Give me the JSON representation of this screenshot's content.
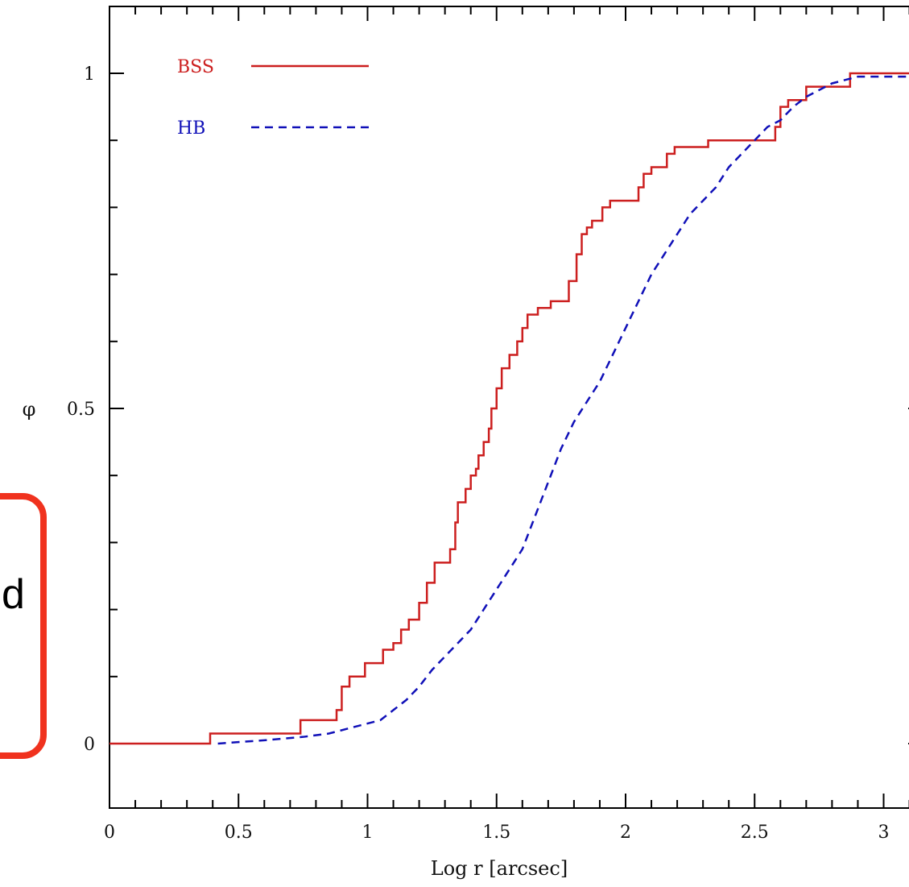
{
  "chart_data": {
    "type": "line",
    "xlabel": "Log r [arcsec]",
    "ylabel": "φ",
    "xlim": [
      0,
      3.1
    ],
    "ylim": [
      -0.1,
      1.1
    ],
    "x_ticks": [
      {
        "value": 0,
        "label": "0"
      },
      {
        "value": 0.5,
        "label": "0.5"
      },
      {
        "value": 1,
        "label": "1"
      },
      {
        "value": 1.5,
        "label": "1.5"
      },
      {
        "value": 2,
        "label": "2"
      },
      {
        "value": 2.5,
        "label": "2.5"
      },
      {
        "value": 3,
        "label": "3"
      }
    ],
    "y_ticks": [
      {
        "value": 0,
        "label": "0"
      },
      {
        "value": 0.5,
        "label": "0.5"
      },
      {
        "value": 1,
        "label": "1"
      }
    ],
    "grid": false,
    "legend_position": "top-left",
    "series": [
      {
        "name": "BSS",
        "color": "#cc1f1f",
        "style": "solid",
        "step": true,
        "x": [
          0,
          0.39,
          0.74,
          0.88,
          0.9,
          0.93,
          0.99,
          1.06,
          1.1,
          1.13,
          1.16,
          1.2,
          1.23,
          1.26,
          1.32,
          1.34,
          1.35,
          1.38,
          1.4,
          1.42,
          1.43,
          1.45,
          1.47,
          1.48,
          1.5,
          1.52,
          1.55,
          1.58,
          1.6,
          1.62,
          1.66,
          1.71,
          1.78,
          1.81,
          1.83,
          1.85,
          1.87,
          1.91,
          1.94,
          2.05,
          2.07,
          2.1,
          2.16,
          2.19,
          2.32,
          2.58,
          2.6,
          2.63,
          2.7,
          2.87,
          3.1
        ],
        "y": [
          0,
          0.015,
          0.035,
          0.05,
          0.085,
          0.1,
          0.12,
          0.14,
          0.15,
          0.17,
          0.185,
          0.21,
          0.24,
          0.27,
          0.29,
          0.33,
          0.36,
          0.38,
          0.4,
          0.41,
          0.43,
          0.45,
          0.47,
          0.5,
          0.53,
          0.56,
          0.58,
          0.6,
          0.62,
          0.64,
          0.65,
          0.66,
          0.69,
          0.73,
          0.76,
          0.77,
          0.78,
          0.8,
          0.81,
          0.83,
          0.85,
          0.86,
          0.88,
          0.89,
          0.9,
          0.92,
          0.95,
          0.96,
          0.98,
          1.0,
          1.0
        ]
      },
      {
        "name": "HB",
        "color": "#1010b8",
        "style": "dashed",
        "step": false,
        "x": [
          0.42,
          0.6,
          0.75,
          0.85,
          0.95,
          1.05,
          1.1,
          1.15,
          1.2,
          1.25,
          1.3,
          1.35,
          1.4,
          1.45,
          1.5,
          1.55,
          1.6,
          1.65,
          1.7,
          1.75,
          1.8,
          1.85,
          1.9,
          1.95,
          2.0,
          2.05,
          2.1,
          2.15,
          2.2,
          2.25,
          2.3,
          2.35,
          2.4,
          2.45,
          2.5,
          2.55,
          2.6,
          2.65,
          2.7,
          2.75,
          2.8,
          2.85,
          2.9,
          3.1
        ],
        "y": [
          0.0,
          0.005,
          0.01,
          0.015,
          0.025,
          0.035,
          0.05,
          0.065,
          0.085,
          0.11,
          0.13,
          0.15,
          0.17,
          0.2,
          0.23,
          0.26,
          0.29,
          0.34,
          0.39,
          0.44,
          0.48,
          0.51,
          0.54,
          0.58,
          0.62,
          0.66,
          0.7,
          0.73,
          0.76,
          0.79,
          0.81,
          0.83,
          0.86,
          0.88,
          0.9,
          0.92,
          0.93,
          0.95,
          0.965,
          0.975,
          0.985,
          0.99,
          0.995,
          0.995
        ]
      }
    ]
  },
  "callout": {
    "text": "d"
  }
}
